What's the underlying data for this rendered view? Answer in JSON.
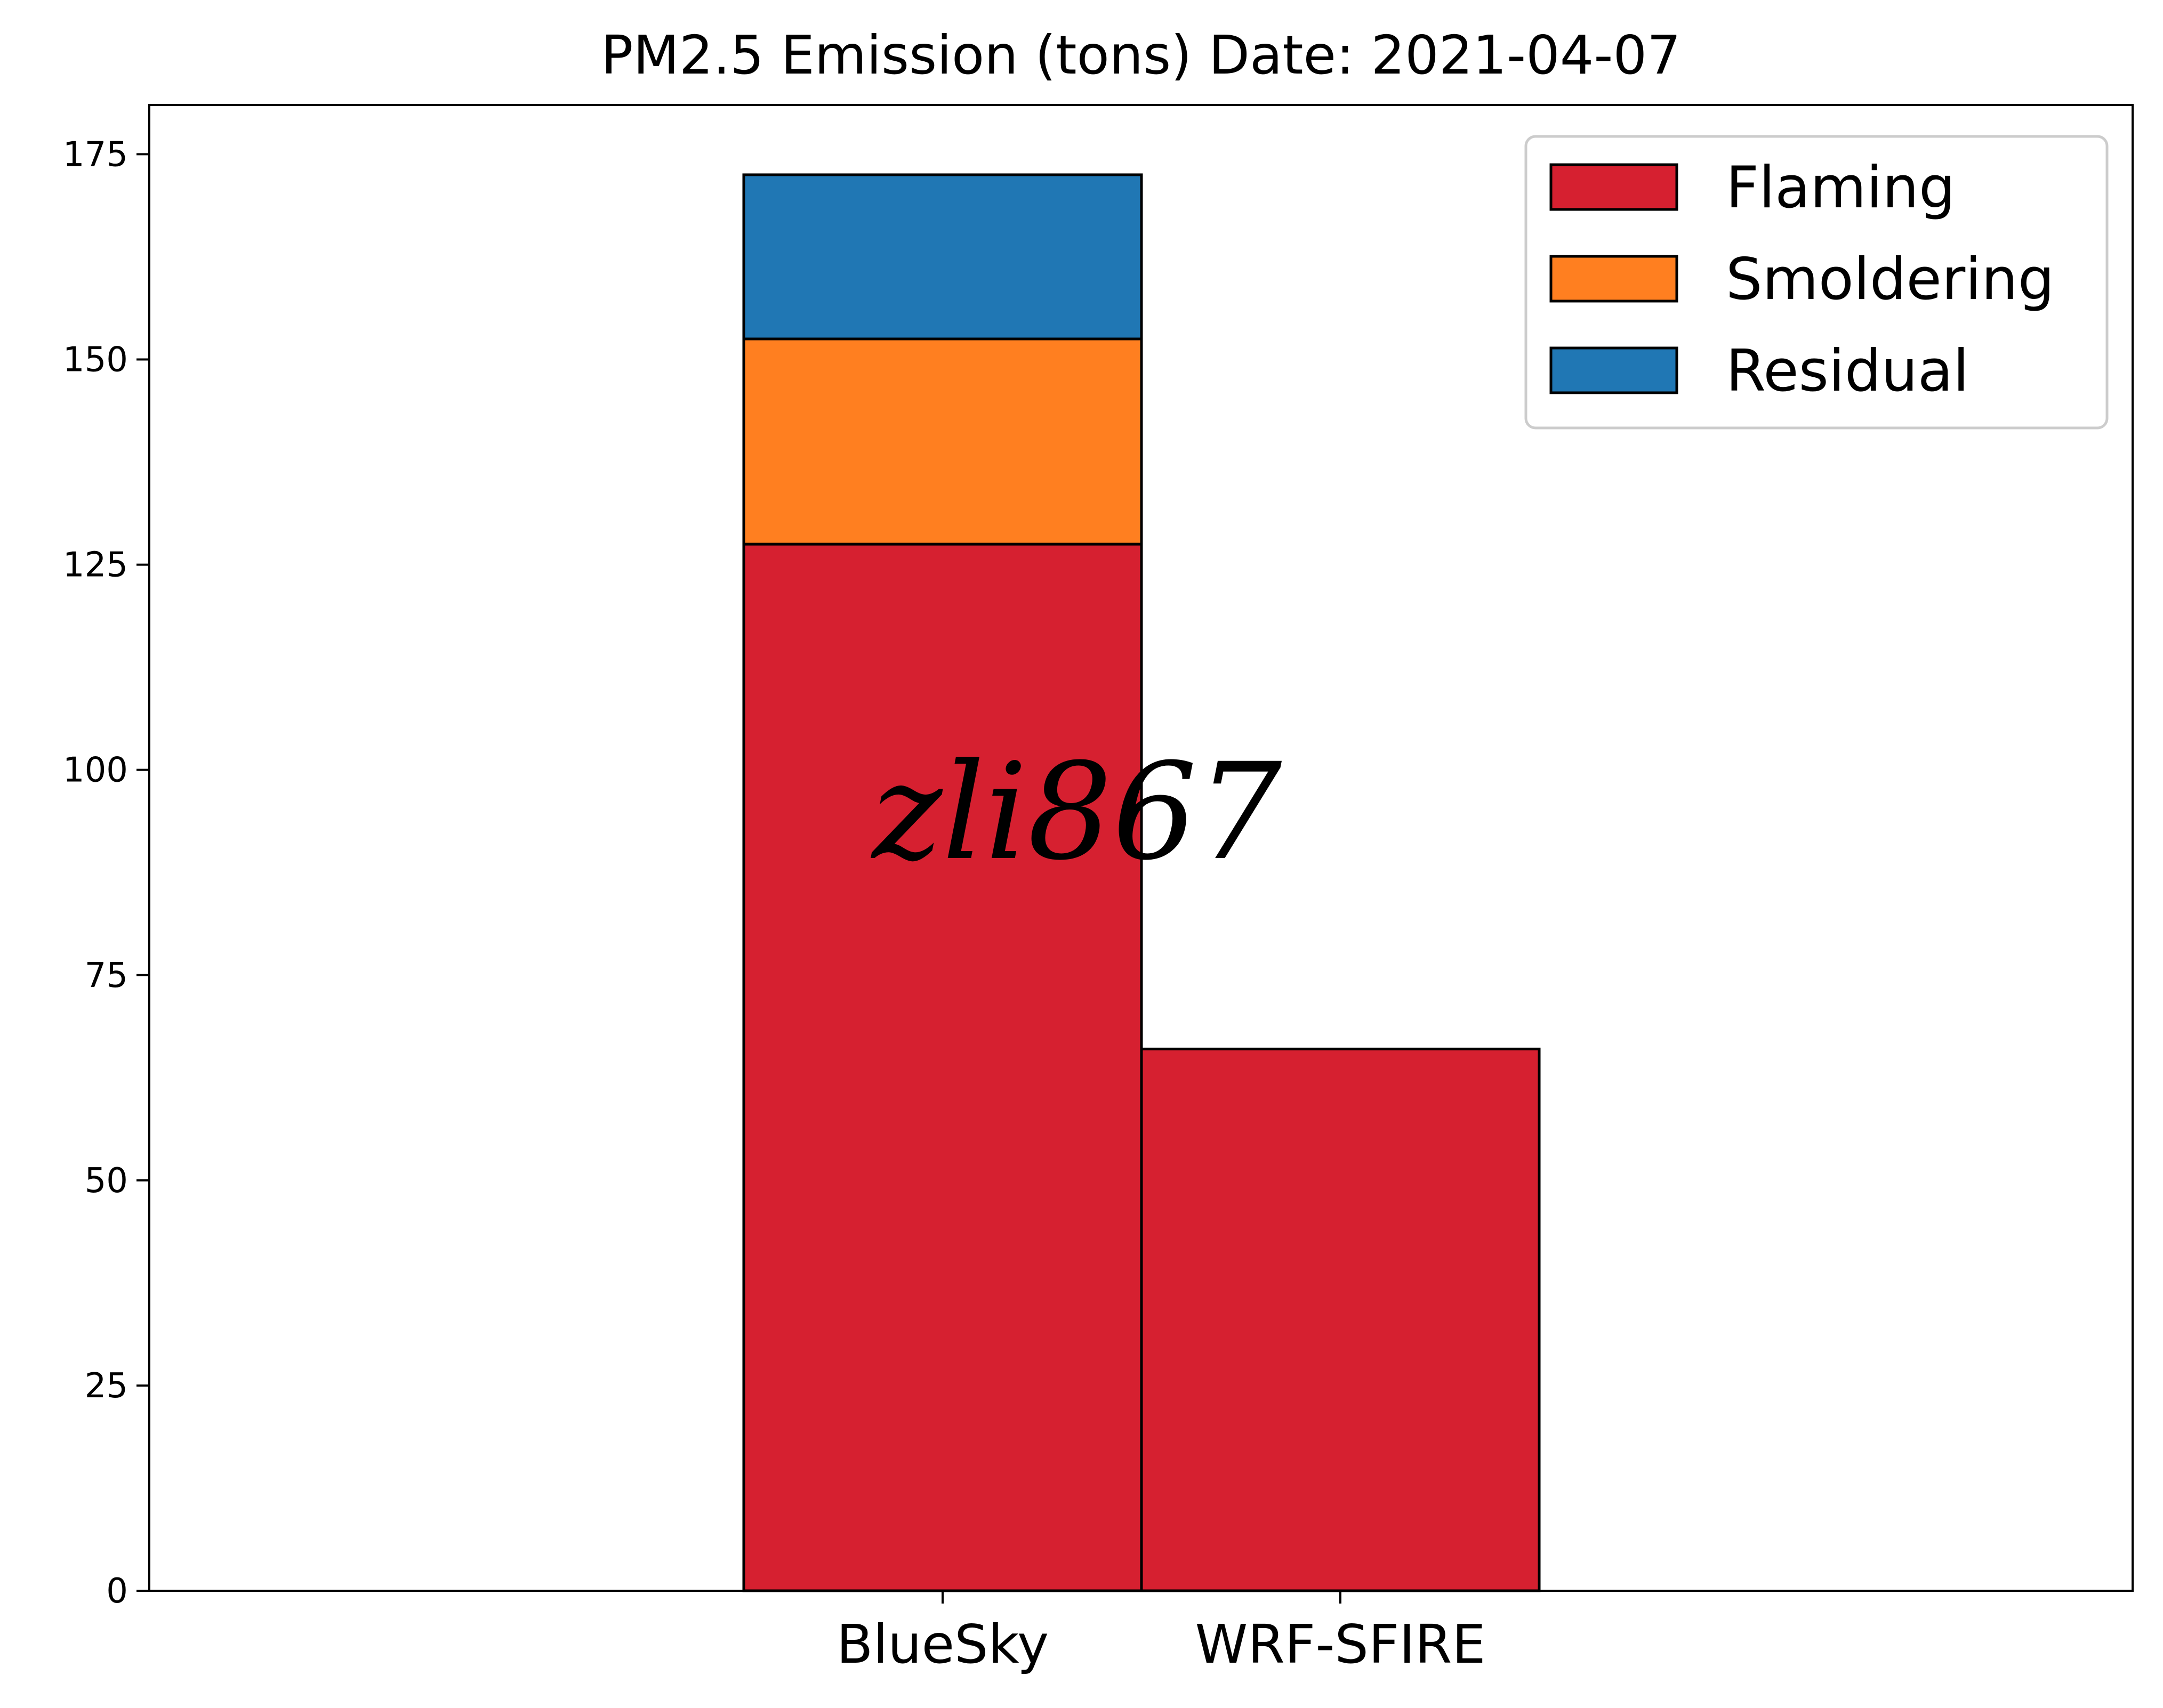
{
  "chart_data": {
    "type": "bar",
    "stacked": true,
    "title": "PM2.5 Emission (tons) Date: 2021-04-07",
    "xlabel": "",
    "ylabel": "",
    "categories": [
      "BlueSky",
      "WRF-SFIRE"
    ],
    "series": [
      {
        "name": "Flaming",
        "values": [
          127.5,
          66.0
        ],
        "color": "#d62030"
      },
      {
        "name": "Smoldering",
        "values": [
          25.0,
          0
        ],
        "color": "#ff7f20"
      },
      {
        "name": "Residual",
        "values": [
          20.0,
          0
        ],
        "color": "#2077b4"
      }
    ],
    "ylim": [
      0,
      181
    ],
    "yticks": [
      "0",
      "25",
      "50",
      "75",
      "100",
      "125",
      "150",
      "175"
    ],
    "grid": false,
    "legend": "top-right",
    "watermark": "zli867"
  }
}
